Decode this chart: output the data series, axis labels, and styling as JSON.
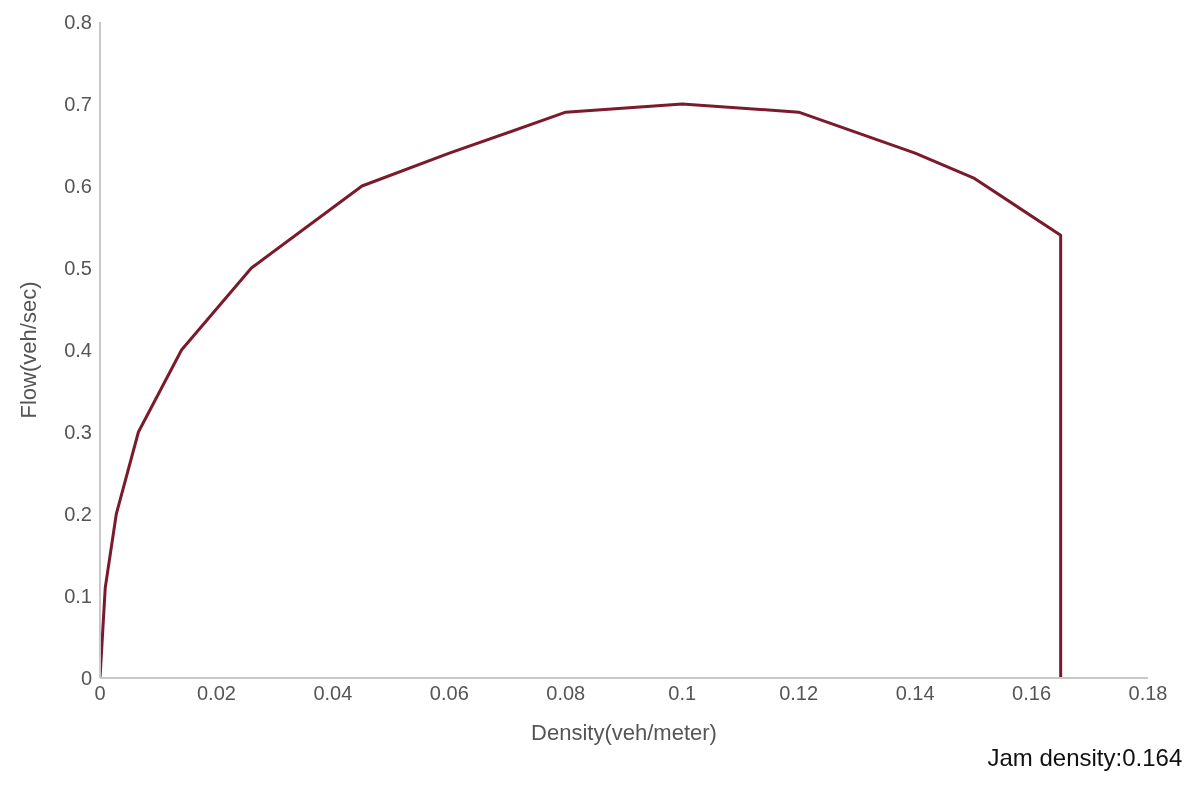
{
  "chart_data": {
    "type": "line",
    "xlabel": "Density(veh/meter)",
    "ylabel": "Flow(veh/sec)",
    "x": [
      0,
      0.0009,
      0.0028,
      0.0066,
      0.014,
      0.02,
      0.026,
      0.045,
      0.06,
      0.08,
      0.1,
      0.12,
      0.14,
      0.15,
      0.165,
      0.165
    ],
    "series": [
      {
        "color": "#7b1a2c",
        "values": [
          0,
          0.11,
          0.2,
          0.3,
          0.4,
          0.45,
          0.5,
          0.6,
          0.64,
          0.69,
          0.7,
          0.69,
          0.64,
          0.61,
          0.54,
          0
        ]
      }
    ],
    "xlim": [
      0,
      0.18
    ],
    "xticks": [
      0,
      0.02,
      0.04,
      0.06,
      0.08,
      0.1,
      0.12,
      0.14,
      0.16,
      0.18
    ],
    "ylim": [
      0,
      0.8
    ],
    "yticks": [
      0,
      0.1,
      0.2,
      0.3,
      0.4,
      0.5,
      0.6,
      0.7,
      0.8
    ],
    "grid": false,
    "legend": false,
    "marker": "none",
    "line_style": "solid",
    "annotations": [
      {
        "text": "Jam density:0.164",
        "x": 0.164,
        "y": 0
      }
    ]
  }
}
